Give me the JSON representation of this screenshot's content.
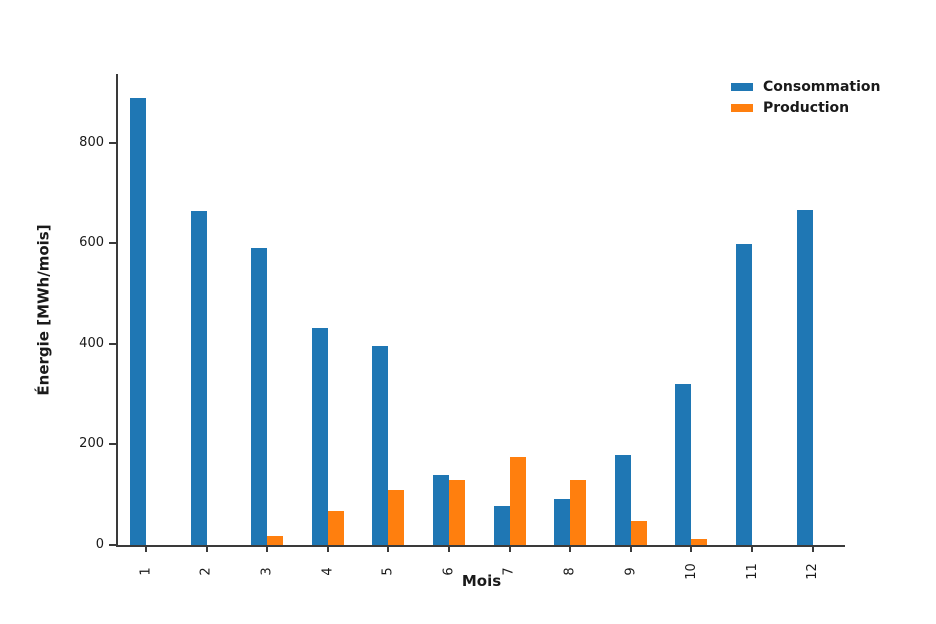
{
  "chart_data": {
    "type": "bar",
    "title": "",
    "xlabel": "Mois",
    "ylabel": "Énergie [MWh/mois]",
    "categories": [
      "1",
      "2",
      "3",
      "4",
      "5",
      "6",
      "7",
      "8",
      "9",
      "10",
      "11",
      "12"
    ],
    "series": [
      {
        "name": "Consommation",
        "color": "#1f77b4",
        "values": [
          890,
          665,
          590,
          432,
          395,
          140,
          78,
          92,
          180,
          320,
          598,
          667
        ]
      },
      {
        "name": "Production",
        "color": "#ff7f0e",
        "values": [
          0,
          0,
          18,
          68,
          110,
          130,
          175,
          130,
          47,
          12,
          0,
          0
        ]
      }
    ],
    "ylim": [
      0,
      937
    ],
    "yticks": [
      0,
      200,
      400,
      600,
      800
    ],
    "legend_position": "upper right",
    "grid": false,
    "xtick_rotation": 90
  }
}
